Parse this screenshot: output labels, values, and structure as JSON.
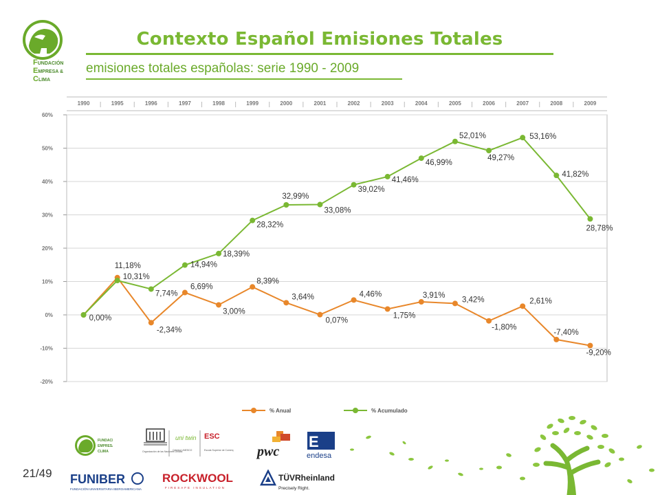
{
  "header": {
    "title": "Contexto Español Emisiones Totales",
    "subtitle": "emisiones totales españolas: serie 1990 - 2009",
    "logo_text": [
      "UNDACIÓN",
      "MPRESA &",
      "LIMA"
    ],
    "logo_caps": [
      "F",
      "E",
      "C"
    ]
  },
  "footer": {
    "page_number": "21/49",
    "sponsors": [
      "FUNIBER",
      "ROCKWOOL",
      "pwc",
      "endesa",
      "TÜVRheinland",
      "Precisely Right.",
      "uni twin",
      "ESC"
    ]
  },
  "colors": {
    "anual": "#e8872a",
    "acumulado": "#7ab833",
    "accent": "#7ab833"
  },
  "chart_data": {
    "type": "line",
    "categories": [
      "1990",
      "1995",
      "1996",
      "1997",
      "1998",
      "1999",
      "2000",
      "2001",
      "2002",
      "2003",
      "2004",
      "2005",
      "2006",
      "2007",
      "2008",
      "2009"
    ],
    "ylim": [
      -20,
      60
    ],
    "yticks": [
      "60%",
      "50%",
      "40%",
      "30%",
      "20%",
      "10%",
      "0%",
      "-10%",
      "-20%"
    ],
    "legend_position": "bottom",
    "series": [
      {
        "name": "% Anual",
        "color": "#e8872a",
        "values": [
          0,
          11.18,
          -2.34,
          6.69,
          3.0,
          8.39,
          3.64,
          0.07,
          4.46,
          1.75,
          3.91,
          3.42,
          -1.8,
          2.61,
          -7.4,
          -9.2
        ],
        "labels": [
          "",
          "11,18%",
          "-2,34%",
          "6,69%",
          "3,00%",
          "8,39%",
          "3,64%",
          "0,07%",
          "4,46%",
          "1,75%",
          "3,91%",
          "3,42%",
          "-1,80%",
          "2,61%",
          "-7,40%",
          "-9,20%"
        ]
      },
      {
        "name": "% Acumulado",
        "color": "#7ab833",
        "values": [
          0,
          10.31,
          7.74,
          14.94,
          18.39,
          28.32,
          32.99,
          33.08,
          39.02,
          41.46,
          46.99,
          52.01,
          49.27,
          53.16,
          41.82,
          28.78
        ],
        "labels": [
          "0,00%",
          "10,31%",
          "7,74%",
          "14,94%",
          "18,39%",
          "28,32%",
          "32,99%",
          "33,08%",
          "39,02%",
          "41,46%",
          "46,99%",
          "52,01%",
          "49,27%",
          "53,16%",
          "41,82%",
          "28,78%"
        ]
      }
    ]
  }
}
